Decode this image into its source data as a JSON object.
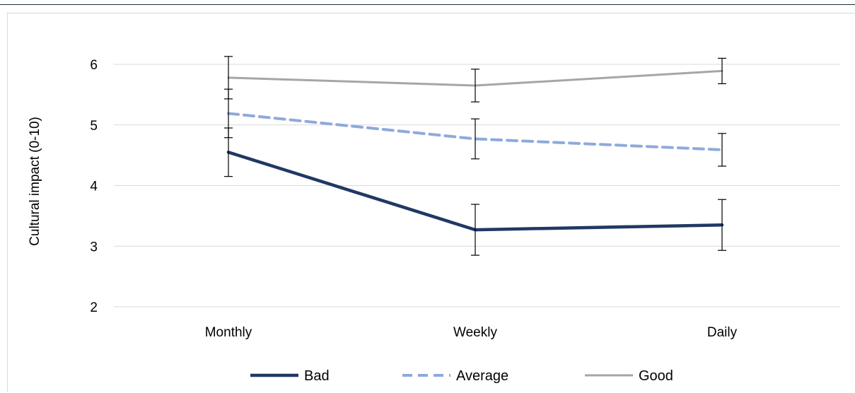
{
  "chart_data": {
    "type": "line",
    "title": "",
    "xlabel": "",
    "ylabel": "Cultural impact (0-10)",
    "categories": [
      "Monthly",
      "Weekly",
      "Daily"
    ],
    "ylim": [
      2,
      6
    ],
    "yticks": [
      "2",
      "3",
      "4",
      "5",
      "6"
    ],
    "grid": true,
    "legend_position": "bottom",
    "series": [
      {
        "name": "Bad",
        "values": [
          4.55,
          3.27,
          3.35
        ],
        "error": [
          0.4,
          0.42,
          0.42
        ],
        "color": "#203864",
        "dashed": false
      },
      {
        "name": "Average",
        "values": [
          5.19,
          4.77,
          4.59
        ],
        "error": [
          0.4,
          0.33,
          0.27
        ],
        "color": "#8eaadb",
        "dashed": true
      },
      {
        "name": "Good",
        "values": [
          5.78,
          5.65,
          5.89
        ],
        "error": [
          0.35,
          0.27,
          0.21
        ],
        "color": "#a6a6a6",
        "dashed": false
      }
    ]
  }
}
